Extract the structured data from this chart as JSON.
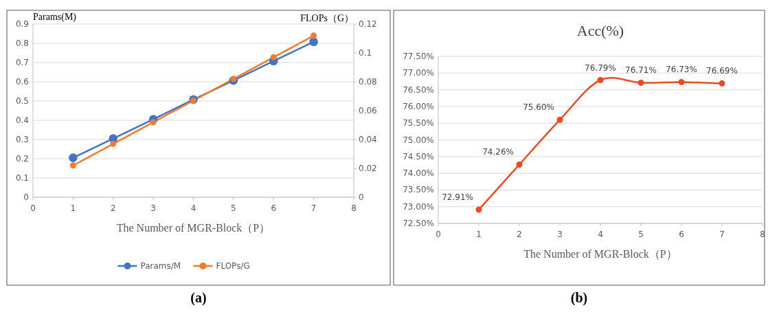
{
  "chart_data": [
    {
      "type": "line",
      "ylabel": "Params(M)",
      "y2label": "FLOPs（G）",
      "xlabel": "The Number of MGR-Block（P）",
      "x": [
        1,
        2,
        3,
        4,
        5,
        6,
        7
      ],
      "series": [
        {
          "name": "Params/M",
          "color": "#4472c4",
          "values": [
            0.205,
            0.305,
            0.405,
            0.508,
            0.607,
            0.708,
            0.808
          ]
        },
        {
          "name": "FLOPs/G",
          "color": "#ed7d31",
          "axis": "y2",
          "values": [
            0.022,
            0.037,
            0.052,
            0.067,
            0.082,
            0.097,
            0.112
          ]
        }
      ],
      "xlim": [
        0,
        8
      ],
      "xticks": [
        0,
        1,
        2,
        3,
        4,
        5,
        6,
        7,
        8
      ],
      "ylim": [
        0,
        0.9
      ],
      "yticks": [
        0,
        0.1,
        0.2,
        0.3,
        0.4,
        0.5,
        0.6,
        0.7,
        0.8,
        0.9
      ],
      "y2lim": [
        0,
        0.12
      ],
      "y2ticks": [
        0,
        0.02,
        0.04,
        0.06,
        0.08,
        0.1,
        0.12
      ],
      "grid": "y",
      "legend": "bottom",
      "marker": "circle",
      "line_style": "solid",
      "annotations": [
        "(a)"
      ]
    },
    {
      "type": "line",
      "title": "Acc(%)",
      "xlabel": "The Number of MGR-Block（P）",
      "x": [
        1,
        2,
        3,
        4,
        5,
        6,
        7
      ],
      "series": [
        {
          "color": "#e84c22",
          "values": [
            72.91,
            74.26,
            75.6,
            76.79,
            76.71,
            76.73,
            76.69
          ],
          "value_labels": [
            "72.91%",
            "74.26%",
            "75.60%",
            "76.79%",
            "76.71%",
            "76.73%",
            "76.69%"
          ]
        }
      ],
      "xlim": [
        0,
        8
      ],
      "xticks": [
        0,
        1,
        2,
        3,
        4,
        5,
        6,
        7,
        8
      ],
      "ylim": [
        72.5,
        77.5
      ],
      "yticks": [
        {
          "value": 72.5,
          "label": "72.50%"
        },
        {
          "value": 73,
          "label": "73.00%"
        },
        {
          "value": 73.5,
          "label": "73.50%"
        },
        {
          "value": 74,
          "label": "74.00%"
        },
        {
          "value": 74.5,
          "label": "74.50%"
        },
        {
          "value": 75,
          "label": "75.00%"
        },
        {
          "value": 75.5,
          "label": "75.50%"
        },
        {
          "value": 76,
          "label": "76.00%"
        },
        {
          "value": 76.5,
          "label": "76.50%"
        },
        {
          "value": 77,
          "label": "77.00%"
        },
        {
          "value": 77.5,
          "label": "77.50%"
        }
      ],
      "grid": "y",
      "marker": "circle",
      "line_style": "solid",
      "annotations": [
        "(b)"
      ]
    }
  ]
}
